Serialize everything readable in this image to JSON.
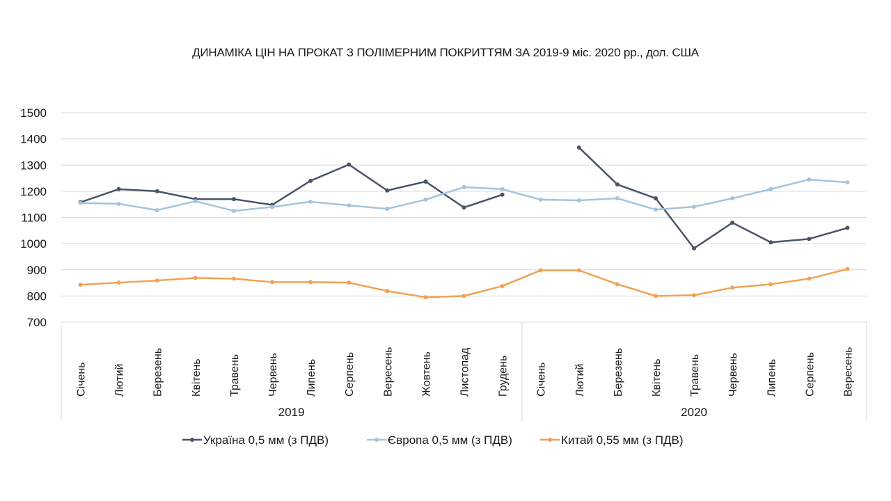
{
  "chart_data": {
    "type": "line",
    "title": "ДИНАМІКА ЦІН НА ПРОКАТ З ПОЛІМЕРНИМ ПОКРИТТЯМ ЗА 2019-9 міс. 2020 рр., дол. США",
    "groups": [
      {
        "label": "2019",
        "categories": [
          "Січень",
          "Лютий",
          "Березень",
          "Квітень",
          "Травень",
          "Червень",
          "Липень",
          "Серпень",
          "Вересень",
          "Жовтень",
          "Листопад",
          "Грудень"
        ]
      },
      {
        "label": "2020",
        "categories": [
          "Січень",
          "Лютий",
          "Березень",
          "Квітень",
          "Травень",
          "Червень",
          "Липень",
          "Серпень",
          "Вересень"
        ]
      }
    ],
    "ylim": [
      700,
      1500
    ],
    "yticks": [
      700,
      800,
      900,
      1000,
      1100,
      1200,
      1300,
      1400,
      1500
    ],
    "grid": true,
    "legend_position": "bottom",
    "series": [
      {
        "name": "Україна 0,5 мм (з ПДВ)",
        "color": "#4a5468",
        "values": [
          1158,
          1208,
          1200,
          1170,
          1170,
          1148,
          1240,
          1302,
          1203,
          1237,
          1138,
          1187,
          null,
          1367,
          1226,
          1173,
          982,
          1080,
          1005,
          1018,
          1060
        ]
      },
      {
        "name": "Європа 0,5 мм (з ПДВ)",
        "color": "#a3c4de",
        "values": [
          1155,
          1152,
          1128,
          1162,
          1125,
          1140,
          1160,
          1146,
          1133,
          1168,
          1216,
          1208,
          1168,
          1165,
          1173,
          1130,
          1141,
          1173,
          1208,
          1245,
          1234
        ]
      },
      {
        "name": "Китай  0,55 мм (з ПДВ)",
        "color": "#f0a254",
        "values": [
          843,
          851,
          859,
          869,
          866,
          853,
          853,
          851,
          819,
          795,
          800,
          838,
          898,
          898,
          845,
          800,
          803,
          832,
          845,
          866,
          903
        ]
      }
    ]
  }
}
